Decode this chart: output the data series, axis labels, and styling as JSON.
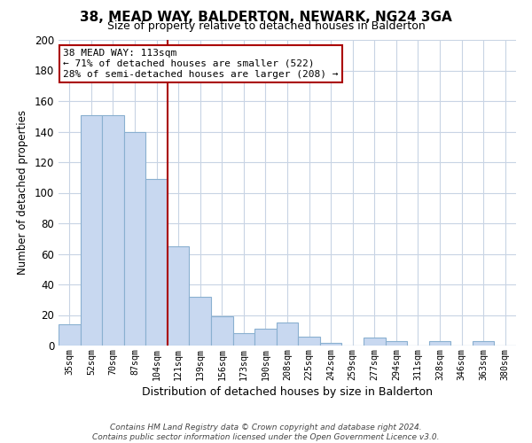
{
  "title": "38, MEAD WAY, BALDERTON, NEWARK, NG24 3GA",
  "subtitle": "Size of property relative to detached houses in Balderton",
  "xlabel": "Distribution of detached houses by size in Balderton",
  "ylabel": "Number of detached properties",
  "bar_labels": [
    "35sqm",
    "52sqm",
    "70sqm",
    "87sqm",
    "104sqm",
    "121sqm",
    "139sqm",
    "156sqm",
    "173sqm",
    "190sqm",
    "208sqm",
    "225sqm",
    "242sqm",
    "259sqm",
    "277sqm",
    "294sqm",
    "311sqm",
    "328sqm",
    "346sqm",
    "363sqm",
    "380sqm"
  ],
  "bar_values": [
    14,
    151,
    151,
    140,
    109,
    65,
    32,
    19,
    8,
    11,
    15,
    6,
    2,
    0,
    5,
    3,
    0,
    3,
    0,
    3,
    0
  ],
  "bar_color": "#c8d8f0",
  "bar_edge_color": "#8ab0d0",
  "vline_x": 4.5,
  "ylim": [
    0,
    200
  ],
  "yticks": [
    0,
    20,
    40,
    60,
    80,
    100,
    120,
    140,
    160,
    180,
    200
  ],
  "vline_color": "#aa0000",
  "annotation_title": "38 MEAD WAY: 113sqm",
  "annotation_line1": "← 71% of detached houses are smaller (522)",
  "annotation_line2": "28% of semi-detached houses are larger (208) →",
  "annotation_box_color": "#ffffff",
  "annotation_box_edge": "#aa0000",
  "footer_line1": "Contains HM Land Registry data © Crown copyright and database right 2024.",
  "footer_line2": "Contains public sector information licensed under the Open Government Licence v3.0.",
  "bg_color": "#ffffff",
  "grid_color": "#c8d4e4"
}
